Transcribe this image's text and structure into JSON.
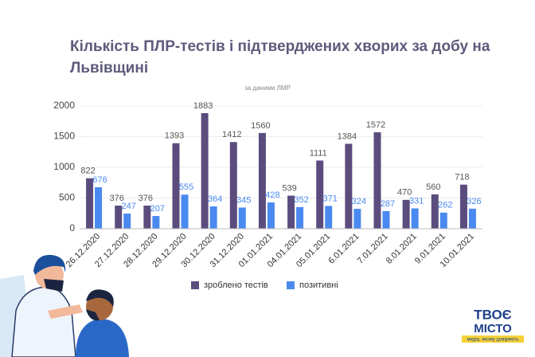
{
  "chart_data": {
    "type": "bar",
    "title": "Кількість ПЛР-тестів і підтверджених хворих за добу на Львівщині",
    "subtitle": "за даними ЛМР",
    "categories": [
      "26.12.2020",
      "27.12.2020",
      "28.12.2020",
      "29.12.2020",
      "30.12.2020",
      "31.12.2020",
      "01.01.2021",
      "04.01.2021",
      "05.01.2021",
      "6.01.2021",
      "7.01.2021",
      "8.01.2021",
      "9.01.2021",
      "10.01.2021"
    ],
    "series": [
      {
        "name": "зроблено тестів",
        "color": "#5b4c7e",
        "values": [
          822,
          376,
          376,
          1393,
          1883,
          1412,
          1560,
          539,
          1111,
          1384,
          1572,
          470,
          560,
          718
        ]
      },
      {
        "name": "позитивні",
        "color": "#4a8af0",
        "values": [
          676,
          247,
          207,
          555,
          364,
          345,
          428,
          352,
          371,
          324,
          287,
          331,
          262,
          326
        ]
      }
    ],
    "ylim": [
      0,
      2000
    ],
    "yticks": [
      0,
      500,
      1000,
      1500,
      2000
    ],
    "grid": true,
    "legend": "bottom",
    "logo": {
      "title": "ТВОЄ",
      "title2": "МІСТО",
      "tagline": "медіа, якому довіряють"
    }
  }
}
